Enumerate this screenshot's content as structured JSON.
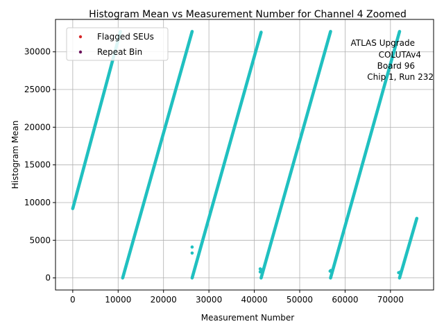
{
  "chart_data": {
    "type": "scatter",
    "title": "Histogram Mean vs Measurement Number for Channel 4 Zoomed",
    "xlabel": "Measurement Number",
    "ylabel": "Histogram Mean",
    "xlim": [
      -3800,
      79500
    ],
    "ylim": [
      -1600,
      34300
    ],
    "xticks": [
      0,
      10000,
      20000,
      30000,
      40000,
      50000,
      60000,
      70000
    ],
    "yticks": [
      0,
      5000,
      10000,
      15000,
      20000,
      25000,
      30000
    ],
    "grid": true,
    "legend": {
      "placement": "top-left",
      "entries": [
        {
          "name": "Flagged SEUs",
          "color": "#d62728"
        },
        {
          "name": "Repeat Bin",
          "color": "#6a0f5a"
        }
      ]
    },
    "annotation": [
      "ATLAS Upgrade",
      "COLUTAv4",
      "Board 96",
      "Chip 1, Run 232"
    ],
    "series": [
      {
        "name": "Data",
        "color": "#20c0c0",
        "ramps": [
          {
            "x": [
              0,
              10500
            ],
            "y": [
              9200,
              32700
            ]
          },
          {
            "x": [
              11000,
              26300
            ],
            "y": [
              0,
              32700
            ]
          },
          {
            "x": [
              26300,
              41500
            ],
            "y": [
              0,
              32600
            ]
          },
          {
            "x": [
              41500,
              56800
            ],
            "y": [
              0,
              32700
            ]
          },
          {
            "x": [
              56800,
              72000
            ],
            "y": [
              0,
              32700
            ]
          },
          {
            "x": [
              72000,
              75800
            ],
            "y": [
              0,
              7900
            ]
          }
        ],
        "points": [
          {
            "x": 26300,
            "y": 4100
          },
          {
            "x": 26300,
            "y": 3300
          },
          {
            "x": 41300,
            "y": 1200
          },
          {
            "x": 41300,
            "y": 800
          },
          {
            "x": 41600,
            "y": 1100
          },
          {
            "x": 56700,
            "y": 900
          },
          {
            "x": 56900,
            "y": 1000
          },
          {
            "x": 71800,
            "y": 700
          },
          {
            "x": 72200,
            "y": 800
          }
        ]
      }
    ]
  }
}
